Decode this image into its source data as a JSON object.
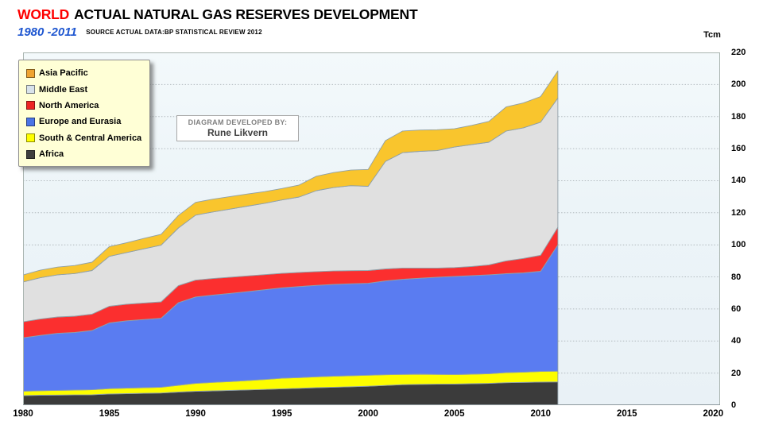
{
  "header": {
    "title_highlight": "WORLD",
    "title_rest": "ACTUAL NATURAL GAS RESERVES DEVELOPMENT",
    "subtitle_range": "1980 -2011",
    "source_note": "SOURCE ACTUAL DATA:BP STATISTICAL REVIEW 2012",
    "unit_label": "Tcm",
    "accent_red": "#fe0000",
    "accent_blue": "#1e56d0"
  },
  "credit_box": {
    "line1": "DIAGRAM DEVELOPED BY:",
    "line2": "Rune Likvern"
  },
  "legend": {
    "items": [
      {
        "label": "Asia Pacific",
        "color": "#f0a431"
      },
      {
        "label": "Middle East",
        "color": "#d8e2ea"
      },
      {
        "label": "North America",
        "color": "#ee2524"
      },
      {
        "label": "Europe and Eurasia",
        "color": "#4b74e6"
      },
      {
        "label": "South & Central America",
        "color": "#ffff00"
      },
      {
        "label": "Africa",
        "color": "#3f3f3f"
      }
    ]
  },
  "chart_data": {
    "type": "area",
    "stacked": true,
    "title": "WORLD ACTUAL NATURAL GAS RESERVES DEVELOPMENT 1980-2011",
    "ylabel": "Tcm",
    "xlabel": "",
    "grid": "horizontal dotted lines every 20",
    "legend_position": "top-left",
    "plot_bg": "#edf4f7",
    "boundary_stroke": "#8fa0a8",
    "border_color": "#aab5b1",
    "grid_color": "#b2babe",
    "ylim": [
      0,
      220
    ],
    "ytick_step": 20,
    "xlim": [
      1980,
      2020.4
    ],
    "xticks": [
      1980,
      1985,
      1990,
      1995,
      2000,
      2005,
      2010,
      2015,
      2020
    ],
    "x": [
      1980,
      1981,
      1982,
      1983,
      1984,
      1985,
      1986,
      1987,
      1988,
      1989,
      1990,
      1991,
      1992,
      1993,
      1994,
      1995,
      1996,
      1997,
      1998,
      1999,
      2000,
      2001,
      2002,
      2003,
      2004,
      2005,
      2006,
      2007,
      2008,
      2009,
      2010,
      2011
    ],
    "series": [
      {
        "name": "Africa",
        "color": "#3b3b3b",
        "values": [
          6.0,
          6.2,
          6.3,
          6.4,
          6.5,
          7.0,
          7.2,
          7.4,
          7.6,
          8.2,
          8.6,
          8.9,
          9.2,
          9.5,
          9.8,
          10.2,
          10.5,
          10.9,
          11.2,
          11.5,
          11.8,
          12.3,
          12.8,
          13.0,
          13.1,
          13.2,
          13.4,
          13.6,
          14.0,
          14.2,
          14.4,
          14.5
        ]
      },
      {
        "name": "South & Central America",
        "color": "#fdfd00",
        "values": [
          2.7,
          2.8,
          2.9,
          3.0,
          3.1,
          3.3,
          3.4,
          3.5,
          3.6,
          4.2,
          5.0,
          5.3,
          5.5,
          5.8,
          6.2,
          6.6,
          6.7,
          6.8,
          6.9,
          6.9,
          6.9,
          6.7,
          6.4,
          6.3,
          6.1,
          5.9,
          5.9,
          6.0,
          6.3,
          6.4,
          6.6,
          6.7
        ]
      },
      {
        "name": "Europe and Eurasia",
        "color": "#5a7cf1",
        "values": [
          33.3,
          34.5,
          35.6,
          36.0,
          37.0,
          41.0,
          42.0,
          42.5,
          43.0,
          51.5,
          53.9,
          54.5,
          55.0,
          55.5,
          56.0,
          56.4,
          56.8,
          57.0,
          57.2,
          57.3,
          57.3,
          58.5,
          59.3,
          59.9,
          60.6,
          61.2,
          61.5,
          61.7,
          61.7,
          61.9,
          62.5,
          78.8
        ]
      },
      {
        "name": "North America",
        "color": "#fb2f2f",
        "values": [
          10.0,
          10.2,
          10.2,
          10.1,
          10.2,
          10.4,
          10.4,
          10.3,
          10.2,
          10.6,
          10.5,
          10.3,
          10.1,
          9.8,
          9.4,
          9.0,
          8.8,
          8.6,
          8.4,
          8.2,
          8.0,
          7.5,
          7.0,
          6.3,
          5.7,
          5.5,
          5.7,
          6.2,
          8.0,
          9.0,
          10.0,
          11.0
        ]
      },
      {
        "name": "Middle East",
        "color": "#e0e0e0",
        "values": [
          24.8,
          25.8,
          26.3,
          26.6,
          27.2,
          31.1,
          32.2,
          33.8,
          35.4,
          36.0,
          40.5,
          41.5,
          42.5,
          43.5,
          44.5,
          45.8,
          47.0,
          50.5,
          52.0,
          53.0,
          52.5,
          67.0,
          72.0,
          72.8,
          73.3,
          75.2,
          76.0,
          76.5,
          81.0,
          81.5,
          83.0,
          80.5
        ]
      },
      {
        "name": "Asia Pacific",
        "color": "#f9c52d",
        "values": [
          4.4,
          4.7,
          4.8,
          5.0,
          5.2,
          6.1,
          6.1,
          6.5,
          6.8,
          7.8,
          8.0,
          8.0,
          7.8,
          7.6,
          7.3,
          7.1,
          7.5,
          9.0,
          9.4,
          9.7,
          10.5,
          13.0,
          13.5,
          13.3,
          13.0,
          11.4,
          12.0,
          13.0,
          15.0,
          15.5,
          16.0,
          17.0
        ]
      }
    ]
  }
}
